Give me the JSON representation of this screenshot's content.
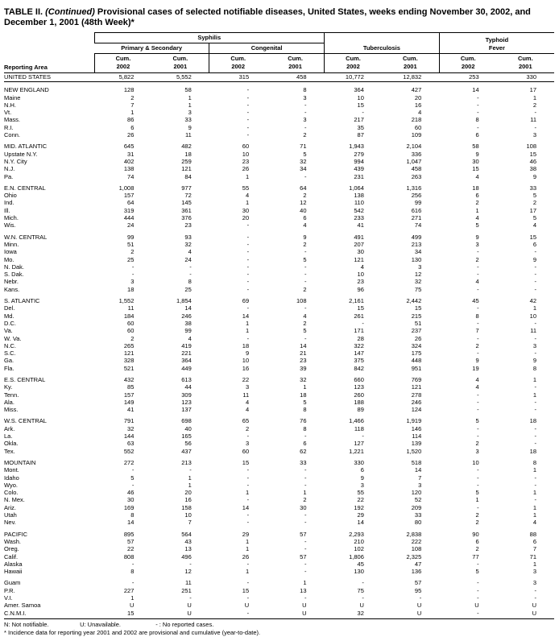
{
  "title": {
    "label": "TABLE II.",
    "continued": "(Continued)",
    "rest": "Provisional cases of selected notifiable diseases, United States, weeks ending November 30, 2002, and December 1, 2001 (48th Week)*"
  },
  "header": {
    "reporting_area": "Reporting Area",
    "syphilis": "Syphilis",
    "primary_secondary": "Primary & Secondary",
    "congenital": "Congenital",
    "tuberculosis": "Tuberculosis",
    "typhoid_fever": "Typhoid\nFever",
    "col_cum_2002": "Cum.\n2002",
    "col_cum_2001": "Cum.\n2001"
  },
  "table": {
    "rows": [
      {
        "label": "UNITED STATES",
        "type": "total",
        "values": [
          "5,822",
          "5,552",
          "315",
          "458",
          "10,772",
          "12,832",
          "253",
          "330"
        ]
      },
      {
        "label": "NEW ENGLAND",
        "type": "region",
        "gap": true,
        "values": [
          "128",
          "58",
          "-",
          "8",
          "364",
          "427",
          "14",
          "17"
        ]
      },
      {
        "label": "Maine",
        "type": "state",
        "values": [
          "2",
          "1",
          "-",
          "3",
          "10",
          "20",
          "-",
          "1"
        ]
      },
      {
        "label": "N.H.",
        "type": "state",
        "values": [
          "7",
          "1",
          "-",
          "-",
          "15",
          "16",
          "-",
          "2"
        ]
      },
      {
        "label": "Vt.",
        "type": "state",
        "values": [
          "1",
          "3",
          "-",
          "-",
          "-",
          "4",
          "-",
          "-"
        ]
      },
      {
        "label": "Mass.",
        "type": "state",
        "values": [
          "86",
          "33",
          "-",
          "3",
          "217",
          "218",
          "8",
          "11"
        ]
      },
      {
        "label": "R.I.",
        "type": "state",
        "values": [
          "6",
          "9",
          "-",
          "-",
          "35",
          "60",
          "-",
          "-"
        ]
      },
      {
        "label": "Conn.",
        "type": "state",
        "values": [
          "26",
          "11",
          "-",
          "2",
          "87",
          "109",
          "6",
          "3"
        ]
      },
      {
        "label": "MID. ATLANTIC",
        "type": "region",
        "gap": true,
        "values": [
          "645",
          "482",
          "60",
          "71",
          "1,943",
          "2,104",
          "58",
          "108"
        ]
      },
      {
        "label": "Upstate N.Y.",
        "type": "state",
        "values": [
          "31",
          "18",
          "10",
          "5",
          "279",
          "336",
          "9",
          "15"
        ]
      },
      {
        "label": "N.Y. City",
        "type": "state",
        "values": [
          "402",
          "259",
          "23",
          "32",
          "994",
          "1,047",
          "30",
          "46"
        ]
      },
      {
        "label": "N.J.",
        "type": "state",
        "values": [
          "138",
          "121",
          "26",
          "34",
          "439",
          "458",
          "15",
          "38"
        ]
      },
      {
        "label": "Pa.",
        "type": "state",
        "values": [
          "74",
          "84",
          "1",
          "-",
          "231",
          "263",
          "4",
          "9"
        ]
      },
      {
        "label": "E.N. CENTRAL",
        "type": "region",
        "gap": true,
        "values": [
          "1,008",
          "977",
          "55",
          "64",
          "1,064",
          "1,316",
          "18",
          "33"
        ]
      },
      {
        "label": "Ohio",
        "type": "state",
        "values": [
          "157",
          "72",
          "4",
          "2",
          "138",
          "256",
          "6",
          "5"
        ]
      },
      {
        "label": "Ind.",
        "type": "state",
        "values": [
          "64",
          "145",
          "1",
          "12",
          "110",
          "99",
          "2",
          "2"
        ]
      },
      {
        "label": "Ill.",
        "type": "state",
        "values": [
          "319",
          "361",
          "30",
          "40",
          "542",
          "616",
          "1",
          "17"
        ]
      },
      {
        "label": "Mich.",
        "type": "state",
        "values": [
          "444",
          "376",
          "20",
          "6",
          "233",
          "271",
          "4",
          "5"
        ]
      },
      {
        "label": "Wis.",
        "type": "state",
        "values": [
          "24",
          "23",
          "-",
          "4",
          "41",
          "74",
          "5",
          "4"
        ]
      },
      {
        "label": "W.N. CENTRAL",
        "type": "region",
        "gap": true,
        "values": [
          "99",
          "93",
          "-",
          "9",
          "491",
          "499",
          "9",
          "15"
        ]
      },
      {
        "label": "Minn.",
        "type": "state",
        "values": [
          "51",
          "32",
          "-",
          "2",
          "207",
          "213",
          "3",
          "6"
        ]
      },
      {
        "label": "Iowa",
        "type": "state",
        "values": [
          "2",
          "4",
          "-",
          "-",
          "30",
          "34",
          "-",
          "-"
        ]
      },
      {
        "label": "Mo.",
        "type": "state",
        "values": [
          "25",
          "24",
          "-",
          "5",
          "121",
          "130",
          "2",
          "9"
        ]
      },
      {
        "label": "N. Dak.",
        "type": "state",
        "values": [
          "-",
          "-",
          "-",
          "-",
          "4",
          "3",
          "-",
          "-"
        ]
      },
      {
        "label": "S. Dak.",
        "type": "state",
        "values": [
          "-",
          "-",
          "-",
          "-",
          "10",
          "12",
          "-",
          "-"
        ]
      },
      {
        "label": "Nebr.",
        "type": "state",
        "values": [
          "3",
          "8",
          "-",
          "-",
          "23",
          "32",
          "4",
          "-"
        ]
      },
      {
        "label": "Kans.",
        "type": "state",
        "values": [
          "18",
          "25",
          "-",
          "2",
          "96",
          "75",
          "-",
          "-"
        ]
      },
      {
        "label": "S. ATLANTIC",
        "type": "region",
        "gap": true,
        "values": [
          "1,552",
          "1,854",
          "69",
          "108",
          "2,161",
          "2,442",
          "45",
          "42"
        ]
      },
      {
        "label": "Del.",
        "type": "state",
        "values": [
          "11",
          "14",
          "-",
          "-",
          "15",
          "15",
          "-",
          "1"
        ]
      },
      {
        "label": "Md.",
        "type": "state",
        "values": [
          "184",
          "246",
          "14",
          "4",
          "261",
          "215",
          "8",
          "10"
        ]
      },
      {
        "label": "D.C.",
        "type": "state",
        "values": [
          "60",
          "38",
          "1",
          "2",
          "-",
          "51",
          "-",
          "-"
        ]
      },
      {
        "label": "Va.",
        "type": "state",
        "values": [
          "60",
          "99",
          "1",
          "5",
          "171",
          "237",
          "7",
          "11"
        ]
      },
      {
        "label": "W. Va.",
        "type": "state",
        "values": [
          "2",
          "4",
          "-",
          "-",
          "28",
          "26",
          "-",
          "-"
        ]
      },
      {
        "label": "N.C.",
        "type": "state",
        "values": [
          "265",
          "419",
          "18",
          "14",
          "322",
          "324",
          "2",
          "3"
        ]
      },
      {
        "label": "S.C.",
        "type": "state",
        "values": [
          "121",
          "221",
          "9",
          "21",
          "147",
          "175",
          "-",
          "-"
        ]
      },
      {
        "label": "Ga.",
        "type": "state",
        "values": [
          "328",
          "364",
          "10",
          "23",
          "375",
          "448",
          "9",
          "9"
        ]
      },
      {
        "label": "Fla.",
        "type": "state",
        "values": [
          "521",
          "449",
          "16",
          "39",
          "842",
          "951",
          "19",
          "8"
        ]
      },
      {
        "label": "E.S. CENTRAL",
        "type": "region",
        "gap": true,
        "values": [
          "432",
          "613",
          "22",
          "32",
          "660",
          "769",
          "4",
          "1"
        ]
      },
      {
        "label": "Ky.",
        "type": "state",
        "values": [
          "85",
          "44",
          "3",
          "1",
          "123",
          "121",
          "4",
          "-"
        ]
      },
      {
        "label": "Tenn.",
        "type": "state",
        "values": [
          "157",
          "309",
          "11",
          "18",
          "260",
          "278",
          "-",
          "1"
        ]
      },
      {
        "label": "Ala.",
        "type": "state",
        "values": [
          "149",
          "123",
          "4",
          "5",
          "188",
          "246",
          "-",
          "-"
        ]
      },
      {
        "label": "Miss.",
        "type": "state",
        "values": [
          "41",
          "137",
          "4",
          "8",
          "89",
          "124",
          "-",
          "-"
        ]
      },
      {
        "label": "W.S. CENTRAL",
        "type": "region",
        "gap": true,
        "values": [
          "791",
          "698",
          "65",
          "76",
          "1,466",
          "1,919",
          "5",
          "18"
        ]
      },
      {
        "label": "Ark.",
        "type": "state",
        "values": [
          "32",
          "40",
          "2",
          "8",
          "118",
          "146",
          "-",
          "-"
        ]
      },
      {
        "label": "La.",
        "type": "state",
        "values": [
          "144",
          "165",
          "-",
          "-",
          "-",
          "114",
          "-",
          "-"
        ]
      },
      {
        "label": "Okla.",
        "type": "state",
        "values": [
          "63",
          "56",
          "3",
          "6",
          "127",
          "139",
          "2",
          "-"
        ]
      },
      {
        "label": "Tex.",
        "type": "state",
        "values": [
          "552",
          "437",
          "60",
          "62",
          "1,221",
          "1,520",
          "3",
          "18"
        ]
      },
      {
        "label": "MOUNTAIN",
        "type": "region",
        "gap": true,
        "values": [
          "272",
          "213",
          "15",
          "33",
          "330",
          "518",
          "10",
          "8"
        ]
      },
      {
        "label": "Mont.",
        "type": "state",
        "values": [
          "-",
          "-",
          "-",
          "-",
          "6",
          "14",
          "-",
          "1"
        ]
      },
      {
        "label": "Idaho",
        "type": "state",
        "values": [
          "5",
          "1",
          "-",
          "-",
          "9",
          "7",
          "-",
          "-"
        ]
      },
      {
        "label": "Wyo.",
        "type": "state",
        "values": [
          "-",
          "1",
          "-",
          "-",
          "3",
          "3",
          "-",
          "-"
        ]
      },
      {
        "label": "Colo.",
        "type": "state",
        "values": [
          "46",
          "20",
          "1",
          "1",
          "55",
          "120",
          "5",
          "1"
        ]
      },
      {
        "label": "N. Mex.",
        "type": "state",
        "values": [
          "30",
          "16",
          "-",
          "2",
          "22",
          "52",
          "1",
          "-"
        ]
      },
      {
        "label": "Ariz.",
        "type": "state",
        "values": [
          "169",
          "158",
          "14",
          "30",
          "192",
          "209",
          "-",
          "1"
        ]
      },
      {
        "label": "Utah",
        "type": "state",
        "values": [
          "8",
          "10",
          "-",
          "-",
          "29",
          "33",
          "2",
          "1"
        ]
      },
      {
        "label": "Nev.",
        "type": "state",
        "values": [
          "14",
          "7",
          "-",
          "-",
          "14",
          "80",
          "2",
          "4"
        ]
      },
      {
        "label": "PACIFIC",
        "type": "region",
        "gap": true,
        "values": [
          "895",
          "564",
          "29",
          "57",
          "2,293",
          "2,838",
          "90",
          "88"
        ]
      },
      {
        "label": "Wash.",
        "type": "state",
        "values": [
          "57",
          "43",
          "1",
          "-",
          "210",
          "222",
          "6",
          "6"
        ]
      },
      {
        "label": "Oreg.",
        "type": "state",
        "values": [
          "22",
          "13",
          "1",
          "-",
          "102",
          "108",
          "2",
          "7"
        ]
      },
      {
        "label": "Calif.",
        "type": "state",
        "values": [
          "808",
          "496",
          "26",
          "57",
          "1,806",
          "2,325",
          "77",
          "71"
        ]
      },
      {
        "label": "Alaska",
        "type": "state",
        "values": [
          "-",
          "-",
          "-",
          "-",
          "45",
          "47",
          "-",
          "1"
        ]
      },
      {
        "label": "Hawaii",
        "type": "state",
        "values": [
          "8",
          "12",
          "1",
          "-",
          "130",
          "136",
          "5",
          "3"
        ]
      },
      {
        "label": "Guam",
        "type": "territory",
        "gap": true,
        "values": [
          "-",
          "11",
          "-",
          "1",
          "-",
          "57",
          "-",
          "3"
        ]
      },
      {
        "label": "P.R.",
        "type": "territory",
        "values": [
          "227",
          "251",
          "15",
          "13",
          "75",
          "95",
          "-",
          "-"
        ]
      },
      {
        "label": "V.I.",
        "type": "territory",
        "values": [
          "1",
          "-",
          "-",
          "-",
          "-",
          "-",
          "-",
          "-"
        ]
      },
      {
        "label": "Amer. Samoa",
        "type": "territory",
        "values": [
          "U",
          "U",
          "U",
          "U",
          "U",
          "U",
          "U",
          "U"
        ]
      },
      {
        "label": "C.N.M.I.",
        "type": "territory",
        "values": [
          "15",
          "U",
          "-",
          "U",
          "32",
          "U",
          "-",
          "U"
        ]
      }
    ]
  },
  "footnotes": {
    "n": "N: Not notifiable.",
    "u": "U: Unavailable.",
    "dash": "- : No reported cases.",
    "incidence": "* Incidence data for reporting year 2001 and 2002 are provisional and cumulative (year-to-date)."
  }
}
